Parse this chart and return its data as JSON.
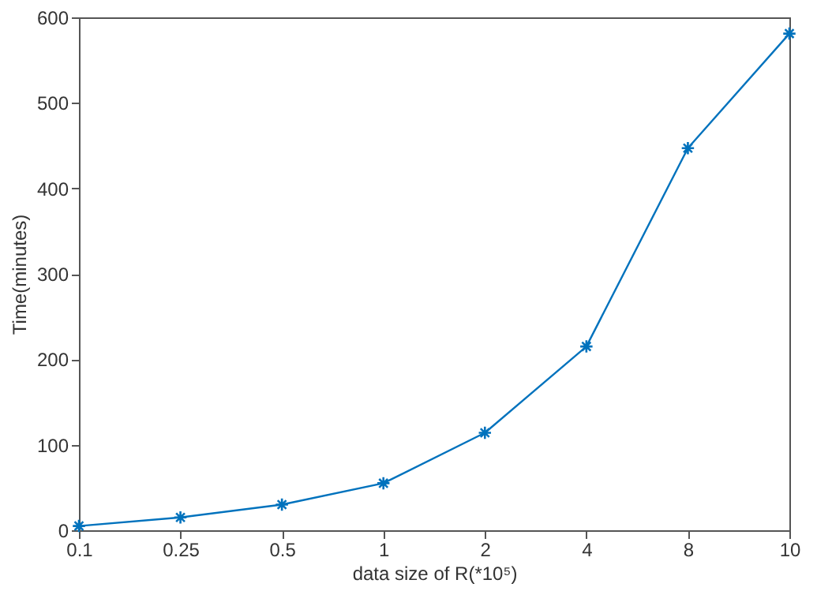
{
  "chart_data": {
    "type": "line",
    "categories": [
      "0.1",
      "0.25",
      "0.5",
      "1",
      "2",
      "4",
      "8",
      "10"
    ],
    "series": [
      {
        "color": "#0072bd",
        "values": [
          5,
          15,
          30,
          55,
          114,
          215,
          447,
          581
        ]
      }
    ],
    "xlabel": "data size of R(*10⁵)",
    "ylabel": "Time(minutes)",
    "ylim": [
      0,
      600
    ],
    "yticks": [
      0,
      100,
      200,
      300,
      400,
      500,
      600
    ],
    "marker": "cross",
    "line_style": "solid",
    "grid": false
  }
}
